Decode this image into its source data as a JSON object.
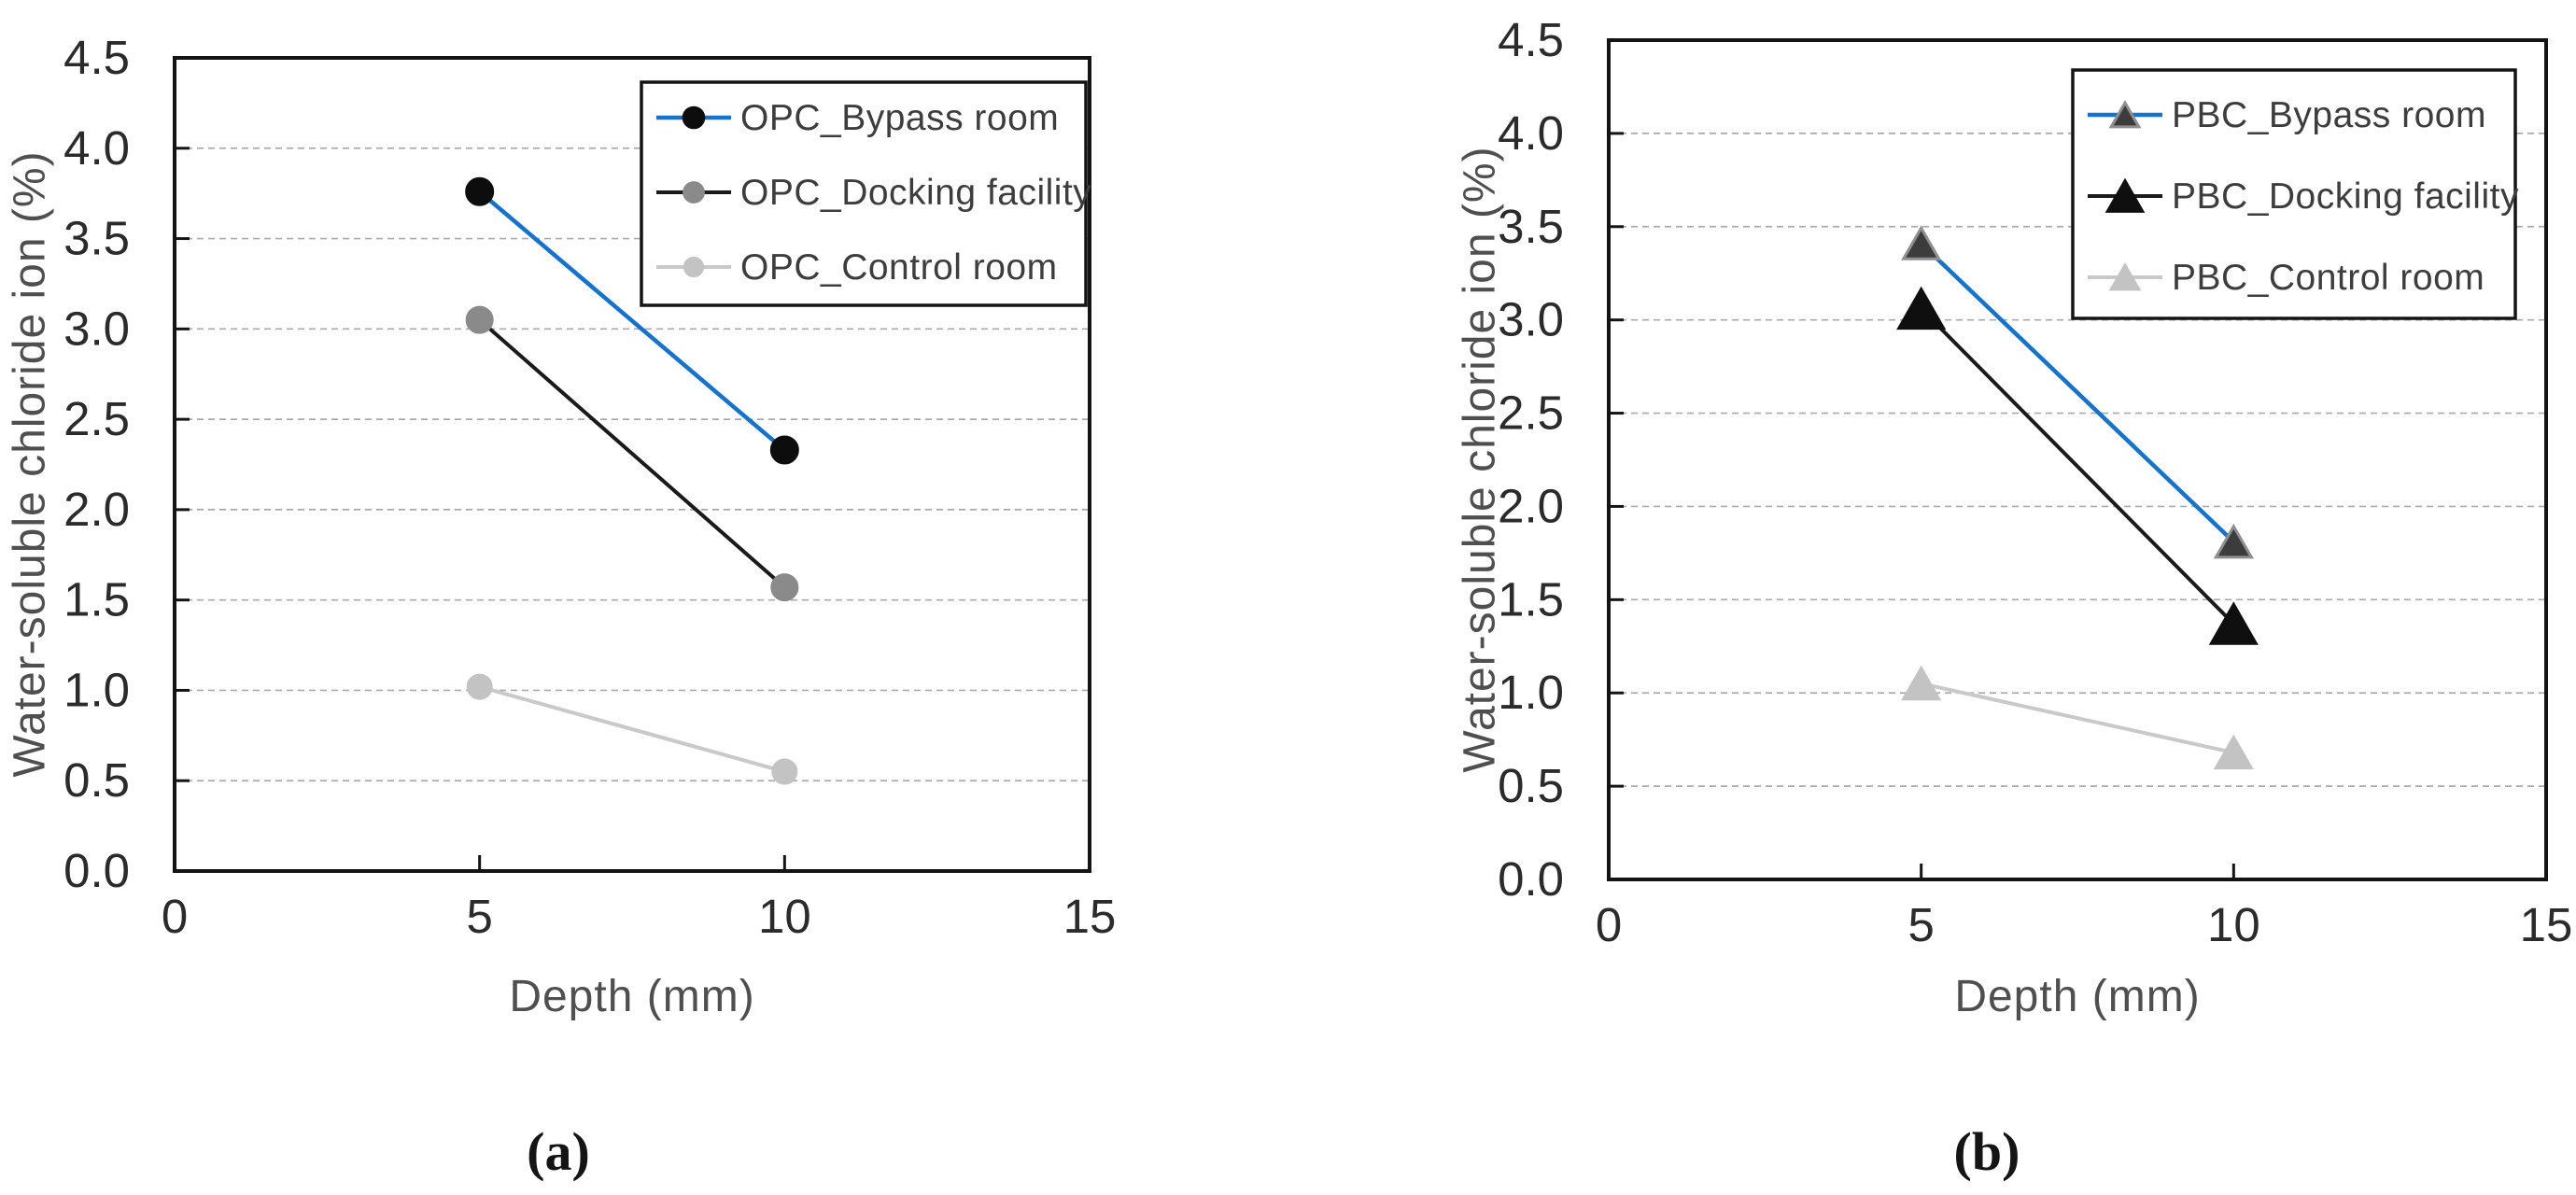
{
  "page": {
    "background": "#ffffff"
  },
  "chart_data": [
    {
      "type": "line",
      "panel": "a",
      "title": "(a)",
      "xlabel": "Depth (mm)",
      "ylabel": "Water-soluble chloride ion (%)",
      "xlim": [
        0,
        15
      ],
      "ylim": [
        0,
        4.5
      ],
      "x_ticks": [
        0,
        5,
        10,
        15
      ],
      "x_tick_marks": [
        5,
        10
      ],
      "y_tick_step": 0.5,
      "grid": "horizontal-dashed",
      "legend_position": "top-right-inside",
      "x": [
        5,
        10
      ],
      "series": [
        {
          "name": "OPC_Bypass room",
          "marker": "circle",
          "values": [
            3.76,
            2.33
          ],
          "line_color": "#1473CE",
          "marker_fill": "#0d0d0d",
          "marker_stroke": "#0d0d0d"
        },
        {
          "name": "OPC_Docking facility",
          "marker": "circle",
          "values": [
            3.05,
            1.57
          ],
          "line_color": "#1a1a1a",
          "marker_fill": "#8a8a8a",
          "marker_stroke": "#8a8a8a"
        },
        {
          "name": "OPC_Control room",
          "marker": "circle",
          "values": [
            1.02,
            0.55
          ],
          "line_color": "#c9c9c9",
          "marker_fill": "#c3c3c3",
          "marker_stroke": "#c3c3c3"
        }
      ],
      "axis_color": "#141414",
      "grid_color": "#aaaaaa",
      "tick_label_color": "#2b2b2b",
      "axis_title_color": "#4f4f4f",
      "legend_text_color": "#3d3d3d"
    },
    {
      "type": "line",
      "panel": "b",
      "title": "(b)",
      "xlabel": "Depth (mm)",
      "ylabel": "Water-soluble chloride ion (%)",
      "xlim": [
        0,
        15
      ],
      "ylim": [
        0,
        4.5
      ],
      "x_ticks": [
        0,
        5,
        10,
        15
      ],
      "x_tick_marks": [
        5,
        10
      ],
      "y_tick_step": 0.5,
      "grid": "horizontal-dashed",
      "legend_position": "top-right-inside",
      "x": [
        5,
        10
      ],
      "series": [
        {
          "name": "PBC_Bypass room",
          "marker": "triangle",
          "values": [
            3.41,
            1.81
          ],
          "line_color": "#1473CE",
          "marker_fill": "#3c3c3c",
          "marker_stroke": "#8f8f8f"
        },
        {
          "name": "PBC_Docking facility",
          "marker": "triangle",
          "values": [
            3.06,
            1.37
          ],
          "line_color": "#1a1a1a",
          "marker_fill": "#0f0f0f",
          "marker_stroke": "#0f0f0f"
        },
        {
          "name": "PBC_Control room",
          "marker": "triangle",
          "values": [
            1.05,
            0.68
          ],
          "line_color": "#c9c9c9",
          "marker_fill": "#c3c3c3",
          "marker_stroke": "#c3c3c3"
        }
      ],
      "axis_color": "#141414",
      "grid_color": "#aaaaaa",
      "tick_label_color": "#2b2b2b",
      "axis_title_color": "#4f4f4f",
      "legend_text_color": "#3d3d3d"
    }
  ]
}
